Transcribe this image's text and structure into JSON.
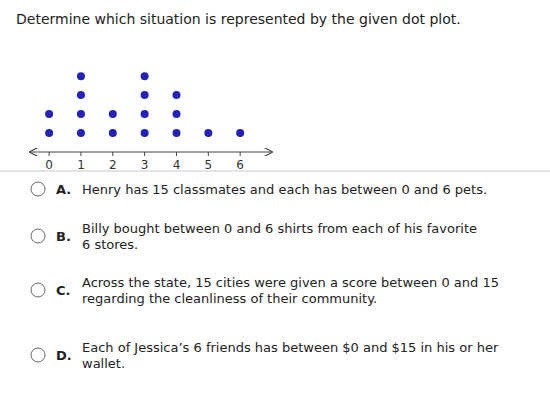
{
  "chart_data": {
    "type": "dot",
    "title": "Determine which situation is represented by the given dot plot.",
    "x": [
      0,
      1,
      2,
      3,
      4,
      5,
      6
    ],
    "values": [
      2,
      4,
      2,
      4,
      3,
      1,
      1
    ],
    "color": "#2222bb",
    "xlim": [
      -0.6,
      7.0
    ],
    "xticks": [
      0,
      1,
      2,
      3,
      4,
      5,
      6
    ],
    "ylim": [
      0,
      5.8
    ],
    "tick_labels": "x",
    "grid": false,
    "annotations": [
      {
        "label": "A.",
        "text": "Henry has 15 classmates and each has between 0 and 6 pets."
      },
      {
        "label": "B.",
        "text": "Billy bought between 0 and 6 shirts from each of his favorite\n6 stores."
      },
      {
        "label": "C.",
        "text": "Across the state, 15 cities were given a score between 0 and 15\nregarding the cleanliness of their community."
      },
      {
        "label": "D.",
        "text": "Each of Jessica’s 6 friends has between $0 and $15 in his or her\nwallet."
      }
    ]
  }
}
